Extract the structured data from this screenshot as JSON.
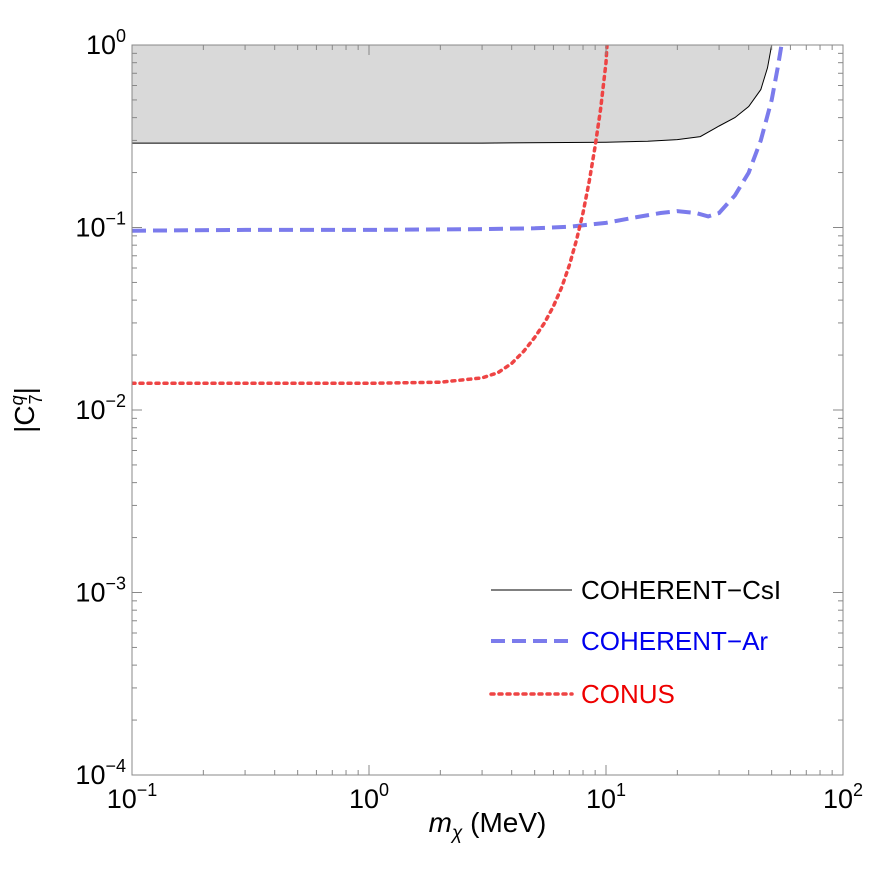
{
  "chart_data": {
    "type": "line",
    "xscale": "log",
    "yscale": "log",
    "xlim": [
      0.1,
      100
    ],
    "ylim": [
      0.0001,
      1
    ],
    "xlabel": {
      "var": "m",
      "sub": "χ",
      "unit": " (MeV)"
    },
    "ylabel": {
      "prefix": "|C",
      "sup": "q",
      "sub": "7",
      "suffix": "|"
    },
    "x_ticks": [
      {
        "value": 0.1,
        "base": "10",
        "exp": "−1"
      },
      {
        "value": 1,
        "base": "10",
        "exp": "0"
      },
      {
        "value": 10,
        "base": "10",
        "exp": "1"
      },
      {
        "value": 100,
        "base": "10",
        "exp": "2"
      }
    ],
    "y_ticks": [
      {
        "value": 0.0001,
        "base": "10",
        "exp": "−4"
      },
      {
        "value": 0.001,
        "base": "10",
        "exp": "−3"
      },
      {
        "value": 0.01,
        "base": "10",
        "exp": "−2"
      },
      {
        "value": 0.1,
        "base": "10",
        "exp": "−1"
      },
      {
        "value": 1,
        "base": "10",
        "exp": "0"
      }
    ],
    "legend_position": "bottom-right",
    "series": [
      {
        "name": "COHERENT−CsI",
        "style": "solid",
        "color": "#000000",
        "label_color": "#000000",
        "fill": "#d9d9d9",
        "fill_above": true,
        "x": [
          0.1,
          0.5,
          1,
          3,
          10,
          15,
          20,
          25,
          30,
          35,
          40,
          45,
          48,
          50
        ],
        "y": [
          0.29,
          0.29,
          0.29,
          0.29,
          0.293,
          0.297,
          0.303,
          0.315,
          0.36,
          0.4,
          0.46,
          0.57,
          0.75,
          1.0
        ]
      },
      {
        "name": "COHERENT−Ar",
        "style": "dashed",
        "color": "#7b7bec",
        "label_color": "#0000ee",
        "x": [
          0.1,
          0.3,
          1,
          3,
          5,
          7,
          10,
          13,
          17,
          20,
          24,
          27,
          30,
          35,
          40,
          45,
          50,
          53,
          55
        ],
        "y": [
          0.096,
          0.097,
          0.097,
          0.098,
          0.099,
          0.101,
          0.106,
          0.113,
          0.12,
          0.123,
          0.12,
          0.115,
          0.12,
          0.15,
          0.2,
          0.3,
          0.5,
          0.75,
          1.0
        ]
      },
      {
        "name": "CONUS",
        "style": "dotted",
        "color": "#ee4444",
        "label_color": "#ee0000",
        "x": [
          0.1,
          0.5,
          1,
          2,
          3,
          3.5,
          4,
          4.5,
          5,
          5.5,
          6,
          6.5,
          7,
          7.5,
          8,
          8.5,
          9,
          9.5,
          10,
          10.1
        ],
        "y": [
          0.014,
          0.014,
          0.014,
          0.0142,
          0.015,
          0.016,
          0.018,
          0.021,
          0.025,
          0.03,
          0.037,
          0.047,
          0.062,
          0.085,
          0.12,
          0.18,
          0.28,
          0.45,
          0.8,
          1.0
        ]
      }
    ]
  }
}
